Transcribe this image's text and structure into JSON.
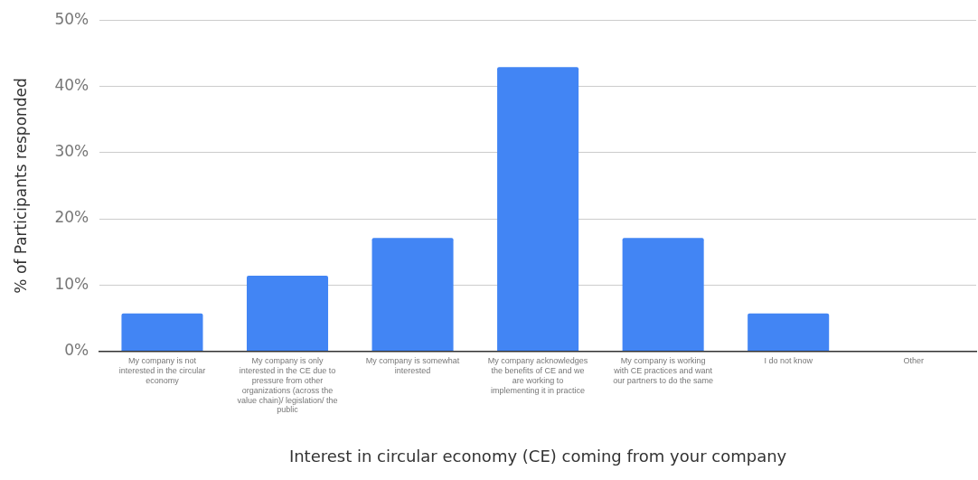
{
  "chart_data": {
    "type": "bar",
    "xlabel": "Interest in circular economy (CE) coming from your company",
    "ylabel": "% of Participants responded",
    "categories": [
      "My company is not interested in the circular economy",
      "My company is only interested in the CE due to pressure from other organizations (across the value chain)/ legislation/ the public",
      "My company is somewhat interested",
      "My company acknowledges the benefits of CE and we are working to implementing it in practice",
      "My company is working with CE practices and want our partners to do the same",
      "I do not know",
      "Other"
    ],
    "values": [
      5.7,
      11.4,
      17.1,
      42.9,
      17.1,
      5.7,
      0
    ],
    "color": "#4285f4",
    "ylim": [
      0,
      50
    ],
    "yticks": [
      {
        "value": 0,
        "label": "0%"
      },
      {
        "value": 10,
        "label": "10%"
      },
      {
        "value": 20,
        "label": "20%"
      },
      {
        "value": 30,
        "label": "30%"
      },
      {
        "value": 40,
        "label": "40%"
      },
      {
        "value": 50,
        "label": "50%"
      }
    ],
    "grid": "y",
    "legend": false
  }
}
